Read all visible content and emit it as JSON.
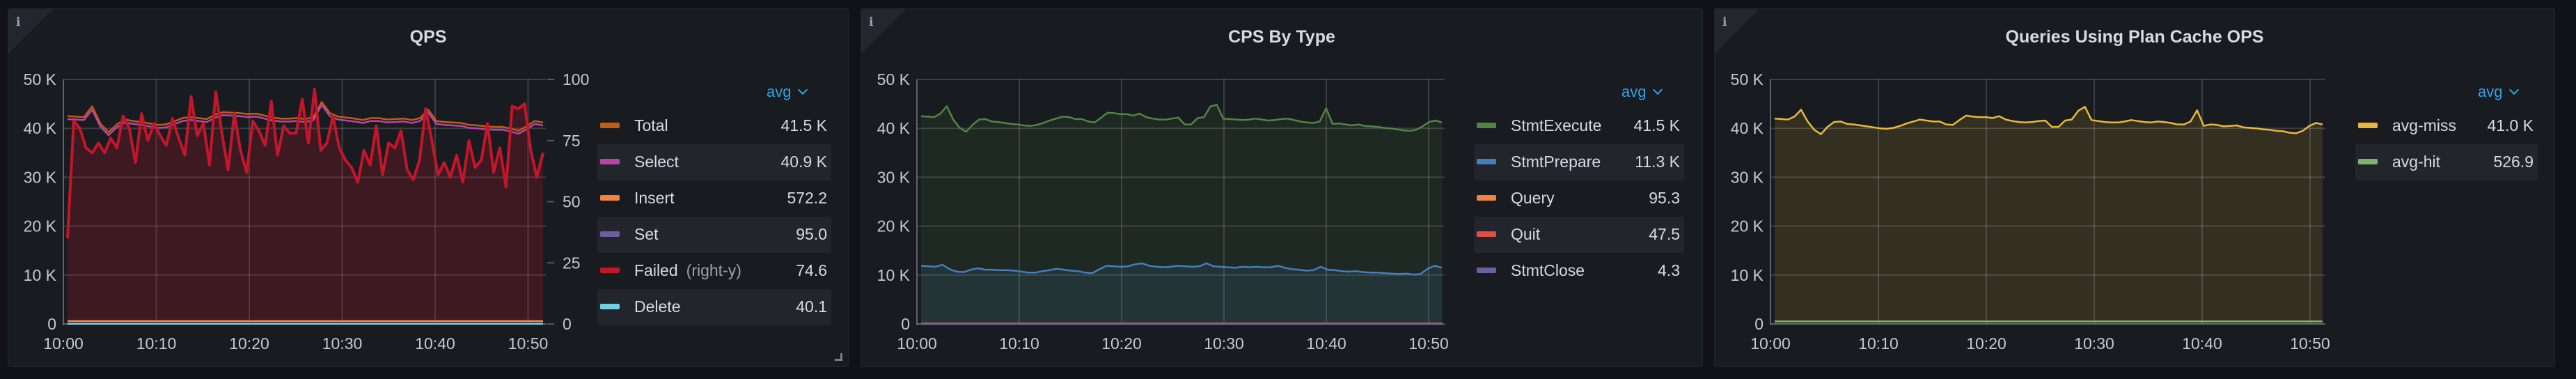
{
  "panels": [
    {
      "title": "QPS",
      "legend_calc": "avg",
      "legend": [
        {
          "label": "Total",
          "sub": "",
          "value": "41.5 K",
          "color": "#c15c17"
        },
        {
          "label": "Select",
          "sub": "",
          "value": "40.9 K",
          "color": "#ba43a9"
        },
        {
          "label": "Insert",
          "sub": "",
          "value": "572.2",
          "color": "#ef843c"
        },
        {
          "label": "Set",
          "sub": "",
          "value": "95.0",
          "color": "#705da0"
        },
        {
          "label": "Failed",
          "sub": "(right-y)",
          "value": "74.6",
          "color": "#c4162a"
        },
        {
          "label": "Delete",
          "sub": "",
          "value": "40.1",
          "color": "#6ed0e0"
        }
      ]
    },
    {
      "title": "CPS By Type",
      "legend_calc": "avg",
      "legend": [
        {
          "label": "StmtExecute",
          "sub": "",
          "value": "41.5 K",
          "color": "#508642"
        },
        {
          "label": "StmtPrepare",
          "sub": "",
          "value": "11.3 K",
          "color": "#447ebc"
        },
        {
          "label": "Query",
          "sub": "",
          "value": "95.3",
          "color": "#ef843c"
        },
        {
          "label": "Quit",
          "sub": "",
          "value": "47.5",
          "color": "#e24d42"
        },
        {
          "label": "StmtClose",
          "sub": "",
          "value": "4.3",
          "color": "#705da0"
        }
      ]
    },
    {
      "title": "Queries Using Plan Cache OPS",
      "legend_calc": "avg",
      "legend": [
        {
          "label": "avg-miss",
          "sub": "",
          "value": "41.0 K",
          "color": "#eab839"
        },
        {
          "label": "avg-hit",
          "sub": "",
          "value": "526.9",
          "color": "#7eb26d"
        }
      ]
    }
  ],
  "chart_data": [
    {
      "type": "line",
      "title": "QPS",
      "x": [
        "10:00",
        "10:10",
        "10:20",
        "10:30",
        "10:40",
        "10:50"
      ],
      "xlabel": "",
      "ylabel": "",
      "ylim": [
        0,
        50000
      ],
      "y_ticks": [
        "0",
        "10 K",
        "20 K",
        "30 K",
        "40 K",
        "50 K"
      ],
      "y2lim": [
        0,
        100
      ],
      "y2_ticks": [
        "0",
        "25",
        "50",
        "75",
        "100"
      ],
      "grid": true,
      "legend_position": "right",
      "series": [
        {
          "name": "Total",
          "axis": "left",
          "avg": "41.5 K",
          "color": "#c15c17",
          "values": [
            42500,
            42400,
            42300,
            44500,
            41000,
            39200,
            40800,
            41800,
            41500,
            41300,
            41000,
            40700,
            40800,
            41400,
            42100,
            42300,
            42100,
            41900,
            42800,
            43300,
            43200,
            43100,
            42900,
            43000,
            42600,
            42200,
            42000,
            42000,
            42100,
            41900,
            42300,
            45400,
            43100,
            42400,
            42200,
            42000,
            41700,
            42100,
            42100,
            41800,
            41900,
            42000,
            41700,
            42100,
            43800,
            41500,
            41300,
            41200,
            41100,
            40700,
            40600,
            40400,
            40300,
            40300,
            40000,
            39500,
            40400,
            41500,
            41200
          ],
          "fill": false
        },
        {
          "name": "Select",
          "axis": "left",
          "avg": "40.9 K",
          "color": "#ba43a9",
          "values": [
            41900,
            41800,
            41700,
            43800,
            40400,
            38600,
            40200,
            41200,
            40900,
            40700,
            40400,
            40100,
            40200,
            40800,
            41500,
            41700,
            41500,
            41300,
            42200,
            42700,
            42600,
            42500,
            42300,
            42400,
            42000,
            41600,
            41400,
            41400,
            41500,
            41300,
            41700,
            44800,
            42500,
            41800,
            41600,
            41400,
            41100,
            41500,
            41500,
            41200,
            41300,
            41400,
            41100,
            41500,
            43200,
            40900,
            40700,
            40600,
            40500,
            40100,
            40000,
            39800,
            39700,
            39700,
            39400,
            38900,
            39800,
            40900,
            40600
          ],
          "fill": false
        },
        {
          "name": "Insert",
          "axis": "left",
          "avg": "572.2",
          "color": "#ef843c",
          "values_const": 600
        },
        {
          "name": "Set",
          "axis": "left",
          "avg": "95.0",
          "color": "#705da0",
          "values_const": 95
        },
        {
          "name": "Failed",
          "axis": "right",
          "avg": "74.6",
          "color": "#c4162a",
          "values": [
            35,
            83,
            80,
            72,
            70,
            74,
            70,
            76,
            72,
            85,
            80,
            66,
            86,
            75,
            82,
            77,
            73,
            84,
            76,
            69,
            93,
            77,
            82,
            65,
            95,
            78,
            63,
            86,
            71,
            62,
            83,
            79,
            73,
            91,
            69,
            81,
            78,
            78,
            92,
            74,
            96,
            71,
            74,
            85,
            72,
            67,
            64,
            58,
            71,
            65,
            81,
            61,
            74,
            72,
            79,
            63,
            59,
            67,
            88,
            75,
            61,
            66,
            60,
            69,
            58,
            75,
            64,
            67,
            82,
            62,
            72,
            56,
            89,
            88,
            90,
            71,
            60,
            70
          ],
          "fill": true
        },
        {
          "name": "Delete",
          "axis": "left",
          "avg": "40.1",
          "color": "#6ed0e0",
          "values_const": 40
        }
      ]
    },
    {
      "type": "area",
      "title": "CPS By Type",
      "x": [
        "10:00",
        "10:10",
        "10:20",
        "10:30",
        "10:40",
        "10:50"
      ],
      "ylim": [
        0,
        50000
      ],
      "y_ticks": [
        "0",
        "10 K",
        "20 K",
        "30 K",
        "40 K",
        "50 K"
      ],
      "grid": true,
      "legend_position": "right",
      "series": [
        {
          "name": "StmtExecute",
          "avg": "41.5 K",
          "color": "#508642",
          "values": [
            42500,
            42400,
            42300,
            43000,
            44500,
            41800,
            40100,
            39300,
            40700,
            41800,
            41900,
            41400,
            41300,
            41100,
            40900,
            40800,
            40600,
            40500,
            40700,
            41100,
            41600,
            42000,
            42400,
            42300,
            41900,
            41900,
            41400,
            41200,
            42200,
            43200,
            43100,
            42900,
            42900,
            42600,
            43000,
            42300,
            42000,
            41800,
            41800,
            42000,
            42200,
            40800,
            40800,
            42100,
            42300,
            44500,
            44800,
            42000,
            41900,
            41800,
            41700,
            41800,
            42000,
            41800,
            41600,
            41700,
            41900,
            42000,
            41700,
            41400,
            41200,
            41100,
            41400,
            44100,
            40900,
            41000,
            40800,
            40600,
            40800,
            40500,
            40400,
            40300,
            40100,
            40000,
            39800,
            39600,
            39500,
            39700,
            40400,
            41300,
            41600,
            41200
          ],
          "fill": true
        },
        {
          "name": "StmtPrepare",
          "avg": "11.3 K",
          "color": "#447ebc",
          "values": [
            11900,
            11800,
            11700,
            12100,
            11200,
            10700,
            10600,
            11100,
            11400,
            11100,
            11100,
            11000,
            11000,
            10900,
            10700,
            10500,
            10500,
            10800,
            11000,
            11300,
            11100,
            10900,
            10800,
            10500,
            10400,
            11200,
            11900,
            11800,
            11700,
            11800,
            12200,
            12400,
            11900,
            11700,
            11600,
            11700,
            11900,
            11800,
            11700,
            11800,
            12400,
            11800,
            11700,
            11600,
            11500,
            11700,
            11600,
            11700,
            11600,
            11600,
            11900,
            11500,
            11200,
            11100,
            10900,
            11000,
            11700,
            11100,
            11000,
            10800,
            10700,
            10800,
            10600,
            10500,
            10500,
            10400,
            10300,
            10200,
            10300,
            10100,
            10200,
            11300,
            11900,
            11500
          ],
          "fill": true
        },
        {
          "name": "Query",
          "avg": "95.3",
          "color": "#ef843c",
          "values_const": 95
        },
        {
          "name": "Quit",
          "avg": "47.5",
          "color": "#e24d42",
          "values_const": 48
        },
        {
          "name": "StmtClose",
          "avg": "4.3",
          "color": "#705da0",
          "values_const": 4
        }
      ]
    },
    {
      "type": "area",
      "title": "Queries Using Plan Cache OPS",
      "x": [
        "10:00",
        "10:10",
        "10:20",
        "10:30",
        "10:40",
        "10:50"
      ],
      "ylim": [
        0,
        50000
      ],
      "y_ticks": [
        "0",
        "10 K",
        "20 K",
        "30 K",
        "40 K",
        "50 K"
      ],
      "grid": true,
      "legend_position": "right",
      "series": [
        {
          "name": "avg-miss",
          "avg": "41.0 K",
          "color": "#eab839",
          "values": [
            42000,
            41900,
            41800,
            42400,
            43800,
            41400,
            39700,
            38800,
            40300,
            41300,
            41400,
            40900,
            40800,
            40600,
            40400,
            40200,
            40000,
            39900,
            40100,
            40500,
            41000,
            41400,
            41800,
            41600,
            41400,
            41400,
            40800,
            40700,
            41700,
            42600,
            42400,
            42300,
            42300,
            42100,
            42500,
            41800,
            41500,
            41300,
            41200,
            41300,
            41500,
            41600,
            40300,
            40300,
            41600,
            41800,
            43600,
            44400,
            41700,
            41500,
            41300,
            41200,
            41200,
            41400,
            41700,
            41500,
            41300,
            41200,
            41400,
            41300,
            41100,
            40800,
            40800,
            41400,
            43700,
            40500,
            40800,
            40700,
            40400,
            40500,
            40600,
            40200,
            40100,
            40000,
            39800,
            39700,
            39500,
            39400,
            39100,
            39000,
            39500,
            40500,
            41100,
            40800
          ],
          "fill": true
        },
        {
          "name": "avg-hit",
          "avg": "526.9",
          "color": "#7eb26d",
          "values_const": 530
        }
      ]
    }
  ]
}
